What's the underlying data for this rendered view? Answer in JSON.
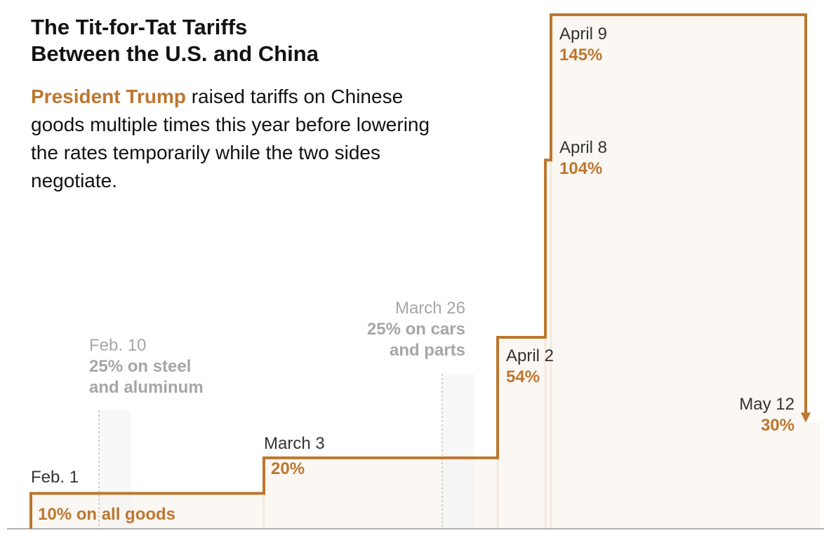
{
  "title_lines": [
    "The Tit-for-Tat Tariffs",
    "Between the U.S. and China"
  ],
  "intro": {
    "highlight": "President Trump",
    "rest": " raised tariffs on Chinese goods multiple times this year before lowering the rates temporarily while the two sides negotiate."
  },
  "colors": {
    "line": "#bd772f",
    "fill": "#fbf7f2",
    "muted": "#a6a6a6",
    "text": "#121212",
    "baseline": "#999999"
  },
  "chart_data": {
    "type": "line",
    "step": true,
    "ylim": [
      0,
      145
    ],
    "series": [
      {
        "points": [
          {
            "date": "Feb. 1",
            "value": 10,
            "label": "10% on all goods"
          },
          {
            "date": "March 3",
            "value": 20,
            "label": "20%"
          },
          {
            "date": "April 2",
            "value": 54,
            "label": "54%"
          },
          {
            "date": "April 8",
            "value": 104,
            "label": "104%"
          },
          {
            "date": "April 9",
            "value": 145,
            "label": "145%"
          },
          {
            "date": "May 12",
            "value": 30,
            "label": "30%"
          }
        ]
      }
    ],
    "annotations": [
      {
        "date": "Feb. 10",
        "lines": [
          "25% on steel",
          "and aluminum"
        ]
      },
      {
        "date": "March 26",
        "lines": [
          "25% on cars",
          "and parts"
        ]
      }
    ]
  }
}
